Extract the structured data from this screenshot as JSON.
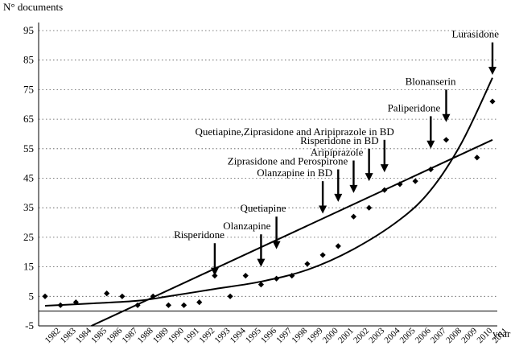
{
  "chart_data": {
    "type": "scatter",
    "ylabel": "N° documents",
    "xlabel": "year",
    "ylim": [
      -5,
      95
    ],
    "yticks": [
      -5,
      5,
      15,
      25,
      35,
      45,
      55,
      65,
      75,
      85,
      95
    ],
    "grid": "horizontal dotted",
    "x": [
      "1982",
      "1983",
      "1984",
      "1985",
      "1986",
      "1987",
      "1988",
      "1989",
      "1990",
      "1991",
      "1992",
      "1993",
      "1994",
      "1995",
      "1996",
      "1997",
      "1998",
      "1999",
      "2000",
      "2001",
      "2002",
      "2003",
      "2004",
      "2005",
      "2006",
      "2007",
      "2008",
      "2009",
      "2010",
      "2011"
    ],
    "series": [
      {
        "values": [
          5,
          2,
          3,
          null,
          6,
          5,
          2,
          5,
          2,
          2,
          3,
          12,
          5,
          12,
          9,
          11,
          12,
          16,
          19,
          22,
          32,
          35,
          41,
          43,
          44,
          48,
          58,
          null,
          52,
          71
        ]
      }
    ],
    "trendlines": [
      {
        "kind": "linear",
        "start": [
          1985,
          -5
        ],
        "end": [
          2011,
          58
        ]
      },
      {
        "kind": "exponential",
        "points": [
          [
            1982,
            1.8
          ],
          [
            1985,
            2.6
          ],
          [
            1988,
            3.5
          ],
          [
            1990,
            5
          ],
          [
            1993,
            7.5
          ],
          [
            1996,
            10
          ],
          [
            1999,
            14
          ],
          [
            2002,
            21
          ],
          [
            2005,
            31
          ],
          [
            2007,
            41
          ],
          [
            2009,
            57
          ],
          [
            2011,
            79
          ]
        ]
      }
    ],
    "annotations": [
      {
        "text": "Risperidone",
        "x": 1993,
        "value": 12
      },
      {
        "text": "Olanzapine",
        "x": 1996,
        "value": 15
      },
      {
        "text": "Quetiapine",
        "x": 1997,
        "value": 21
      },
      {
        "text": "Olanzapine in BD",
        "x": 2000,
        "value": 33
      },
      {
        "text": "Ziprasidone and Perospirone",
        "x": 2001,
        "value": 37
      },
      {
        "text": "Aripiprazole",
        "x": 2002,
        "value": 40
      },
      {
        "text": "Risperidone in BD",
        "x": 2003,
        "value": 44
      },
      {
        "text": "Quetiapine,Ziprasidone and Aripiprazole in BD",
        "x": 2004,
        "value": 47
      },
      {
        "text": "Paliperidone",
        "x": 2007,
        "value": 55
      },
      {
        "text": "Blonanserin",
        "x": 2008,
        "value": 64
      },
      {
        "text": "Lurasidone",
        "x": 2011,
        "value": 80
      }
    ]
  }
}
